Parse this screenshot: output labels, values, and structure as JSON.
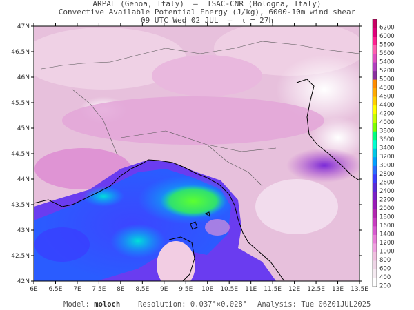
{
  "header": {
    "line1": "ARPAL (Genoa, Italy)  –  ISAC-CNR (Bologna, Italy)",
    "line2": "Convective Available Potential Energy (J/kg), 6000-10m wind shear",
    "line3": "09 UTC Wed 02 JUL  –  τ = 27h"
  },
  "axes": {
    "lon_labels": [
      "6E",
      "6.5E",
      "7E",
      "7.5E",
      "8E",
      "8.5E",
      "9E",
      "9.5E",
      "10E",
      "10.5E",
      "11E",
      "11.5E",
      "12E",
      "12.5E",
      "13E",
      "13.5E"
    ],
    "lat_labels": [
      "47N",
      "46.5N",
      "46N",
      "45.5N",
      "45N",
      "44.5N",
      "44N",
      "43.5N",
      "43N",
      "42.5N",
      "42N"
    ]
  },
  "colorbar": {
    "labels": [
      "6200",
      "6000",
      "5800",
      "5600",
      "5400",
      "5200",
      "5000",
      "4800",
      "4600",
      "4400",
      "4200",
      "4000",
      "3800",
      "3600",
      "3400",
      "3200",
      "3000",
      "2800",
      "2600",
      "2400",
      "2200",
      "2000",
      "1800",
      "1600",
      "1400",
      "1200",
      "1000",
      "800",
      "600",
      "400",
      "200"
    ],
    "colors": [
      "#c80064",
      "#e0007a",
      "#ff2090",
      "#ff5fb0",
      "#e24fbf",
      "#b23fbf",
      "#8a2f9f",
      "#ff8c00",
      "#ffaa00",
      "#ffd000",
      "#ffff00",
      "#c8ff00",
      "#7fff00",
      "#00ff7f",
      "#00ffd0",
      "#00c8e6",
      "#00a0ff",
      "#2a6cff",
      "#3a3cff",
      "#5a2ad8",
      "#7a1fc8",
      "#9a1ab8",
      "#b226b0",
      "#c83cc0",
      "#d85ad0",
      "#e87ed8",
      "#f0a0e0",
      "#f0bfdf",
      "#eed5e6",
      "#f5eaf1",
      "#ffffff"
    ]
  },
  "footer": {
    "model_label": "Model: ",
    "model_value": "moloch",
    "resolution": "Resolution: 0.037°×0.028°",
    "analysis": "Analysis: Tue 06Z01JUL2025"
  }
}
